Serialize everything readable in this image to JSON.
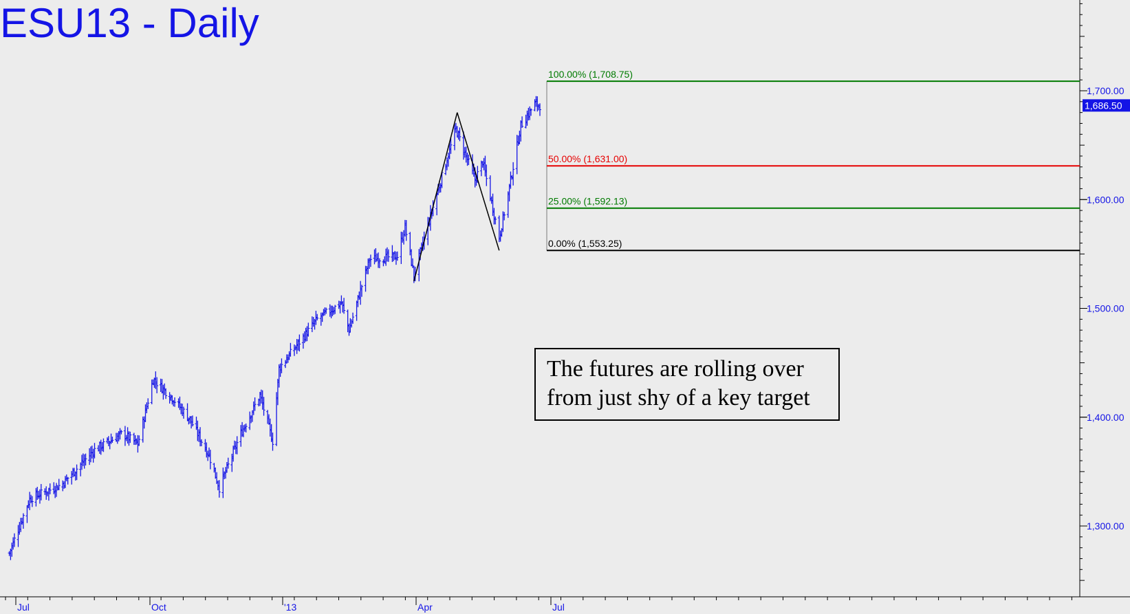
{
  "chart_data": {
    "type": "ohlc-bar",
    "title": "ESU13 - Daily",
    "ylim": [
      1240,
      1790
    ],
    "y_ticks": [
      {
        "value": 1300,
        "label": "1,300.00"
      },
      {
        "value": 1400,
        "label": "1,400.00"
      },
      {
        "value": 1500,
        "label": "1,500.00"
      },
      {
        "value": 1600,
        "label": "1,600.00"
      },
      {
        "value": 1700,
        "label": "1,700.00"
      }
    ],
    "x_ticks": [
      "Jul",
      "Oct",
      "'13",
      "Apr",
      "Jul"
    ],
    "last_price": {
      "value": 1686.5,
      "label": "1,686.50",
      "color": "#1414e6"
    },
    "fib_levels": [
      {
        "label": "100.00% (1,708.75)",
        "value": 1708.75,
        "color": "#007a00"
      },
      {
        "label": "50.00% (1,631.00)",
        "value": 1631.0,
        "color": "#e60000"
      },
      {
        "label": "25.00% (1,592.13)",
        "value": 1592.13,
        "color": "#007a00"
      },
      {
        "label": "0.00% (1,553.25)",
        "value": 1553.25,
        "color": "#000000"
      }
    ],
    "pattern_points": [
      {
        "date": "2013-04-18",
        "value": 1525
      },
      {
        "date": "2013-05-22",
        "value": 1680
      },
      {
        "date": "2013-06-24",
        "value": 1553.25
      }
    ],
    "price_anchors": [
      {
        "date": "2012-06-04",
        "value": 1275
      },
      {
        "date": "2012-06-20",
        "value": 1325
      },
      {
        "date": "2012-07-15",
        "value": 1338
      },
      {
        "date": "2012-08-10",
        "value": 1370
      },
      {
        "date": "2012-09-01",
        "value": 1385
      },
      {
        "date": "2012-09-13",
        "value": 1375
      },
      {
        "date": "2012-09-25",
        "value": 1435
      },
      {
        "date": "2012-10-10",
        "value": 1418
      },
      {
        "date": "2012-10-24",
        "value": 1398
      },
      {
        "date": "2012-11-08",
        "value": 1365
      },
      {
        "date": "2012-11-16",
        "value": 1335
      },
      {
        "date": "2012-12-03",
        "value": 1385
      },
      {
        "date": "2012-12-18",
        "value": 1420
      },
      {
        "date": "2012-12-28",
        "value": 1378
      },
      {
        "date": "2013-01-02",
        "value": 1445
      },
      {
        "date": "2013-02-01",
        "value": 1490
      },
      {
        "date": "2013-02-20",
        "value": 1505
      },
      {
        "date": "2013-02-26",
        "value": 1480
      },
      {
        "date": "2013-03-14",
        "value": 1545
      },
      {
        "date": "2013-04-05",
        "value": 1548
      },
      {
        "date": "2013-04-11",
        "value": 1575
      },
      {
        "date": "2013-04-18",
        "value": 1530
      },
      {
        "date": "2013-05-01",
        "value": 1585
      },
      {
        "date": "2013-05-21",
        "value": 1665
      },
      {
        "date": "2013-06-05",
        "value": 1618
      },
      {
        "date": "2013-06-11",
        "value": 1635
      },
      {
        "date": "2013-06-24",
        "value": 1565
      },
      {
        "date": "2013-07-01",
        "value": 1605
      },
      {
        "date": "2013-07-11",
        "value": 1668
      },
      {
        "date": "2013-07-22",
        "value": 1688
      },
      {
        "date": "2013-07-26",
        "value": 1686.5
      }
    ],
    "annotation": {
      "lines": [
        "The futures are rolling over",
        "from just shy of a key target"
      ]
    },
    "colors": {
      "bars": "#1414e6",
      "background": "#ececec",
      "axis": "#000000",
      "tick_text": "#1414e6"
    }
  }
}
